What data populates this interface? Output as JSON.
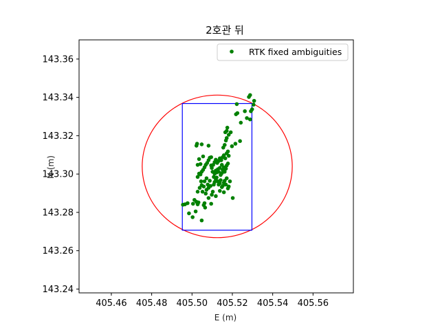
{
  "chart_data": {
    "type": "scatter",
    "title": "2호관 뒤",
    "xlabel": "E (m)",
    "ylabel": "N (m)",
    "xlim": [
      405.444,
      405.58
    ],
    "ylim": [
      143.238,
      143.37
    ],
    "xticks": [
      "405.46",
      "405.48",
      "405.50",
      "405.52",
      "405.54",
      "405.56"
    ],
    "yticks": [
      "143.24",
      "143.26",
      "143.28",
      "143.30",
      "143.32",
      "143.34",
      "143.36"
    ],
    "grid": false,
    "legend_position": "top-right",
    "series": [
      {
        "name": "RTK fixed ambiguities",
        "color": "#008000",
        "marker": "circle",
        "points": [
          [
            405.4955,
            143.284
          ],
          [
            405.4965,
            143.2842
          ],
          [
            405.4978,
            143.2848
          ],
          [
            405.4985,
            143.2795
          ],
          [
            405.5003,
            143.2775
          ],
          [
            405.5005,
            143.2845
          ],
          [
            405.5012,
            143.2865
          ],
          [
            405.5018,
            143.2805
          ],
          [
            405.5022,
            143.2855
          ],
          [
            405.5028,
            143.2842
          ],
          [
            405.5032,
            143.2852
          ],
          [
            405.5048,
            143.2758
          ],
          [
            405.5058,
            143.2838
          ],
          [
            405.5062,
            143.2848
          ],
          [
            405.5028,
            143.2908
          ],
          [
            405.5052,
            143.2908
          ],
          [
            405.5068,
            143.2898
          ],
          [
            405.5072,
            143.2918
          ],
          [
            405.5038,
            143.2928
          ],
          [
            405.5048,
            143.2942
          ],
          [
            405.5058,
            143.2935
          ],
          [
            405.5062,
            143.2962
          ],
          [
            405.5078,
            143.2945
          ],
          [
            405.5082,
            143.2928
          ],
          [
            405.5088,
            143.2965
          ],
          [
            405.5092,
            143.2938
          ],
          [
            405.5098,
            143.2892
          ],
          [
            405.5103,
            143.2908
          ],
          [
            405.5108,
            143.2945
          ],
          [
            405.5112,
            143.2958
          ],
          [
            405.5118,
            143.2972
          ],
          [
            405.5122,
            143.2982
          ],
          [
            405.5128,
            143.2962
          ],
          [
            405.5132,
            143.2945
          ],
          [
            405.5138,
            143.2952
          ],
          [
            405.5142,
            143.2968
          ],
          [
            405.5148,
            143.2932
          ],
          [
            405.5152,
            143.2938
          ],
          [
            405.5158,
            143.2955
          ],
          [
            405.5162,
            143.2965
          ],
          [
            405.5168,
            143.2945
          ],
          [
            405.5172,
            143.2978
          ],
          [
            405.5178,
            143.2925
          ],
          [
            405.5182,
            143.2935
          ],
          [
            405.5188,
            143.2962
          ],
          [
            405.5108,
            143.2985
          ],
          [
            405.5112,
            143.3002
          ],
          [
            405.5118,
            143.3018
          ],
          [
            405.5122,
            143.3008
          ],
          [
            405.5128,
            143.3025
          ],
          [
            405.5132,
            143.3012
          ],
          [
            405.5138,
            143.3032
          ],
          [
            405.5142,
            143.2995
          ],
          [
            405.5148,
            143.3005
          ],
          [
            405.5152,
            143.3022
          ],
          [
            405.5158,
            143.3035
          ],
          [
            405.5162,
            143.3012
          ],
          [
            405.5168,
            143.3028
          ],
          [
            405.5172,
            143.3045
          ],
          [
            405.5178,
            143.3055
          ],
          [
            405.5102,
            143.3012
          ],
          [
            405.5098,
            143.3032
          ],
          [
            405.5105,
            143.3048
          ],
          [
            405.5112,
            143.3062
          ],
          [
            405.5118,
            143.3075
          ],
          [
            405.5125,
            143.3058
          ],
          [
            405.5132,
            143.3068
          ],
          [
            405.5138,
            143.3082
          ],
          [
            405.5145,
            143.3072
          ],
          [
            405.5152,
            143.3088
          ],
          [
            405.5158,
            143.3098
          ],
          [
            405.5165,
            143.3082
          ],
          [
            405.5172,
            143.3108
          ],
          [
            405.5178,
            143.3118
          ],
          [
            405.5182,
            143.3095
          ],
          [
            405.5028,
            143.2985
          ],
          [
            405.5035,
            143.3002
          ],
          [
            405.5042,
            143.2998
          ],
          [
            405.5048,
            143.3012
          ],
          [
            405.5055,
            143.3022
          ],
          [
            405.5062,
            143.3035
          ],
          [
            405.5068,
            143.3048
          ],
          [
            405.5075,
            143.3058
          ],
          [
            405.5082,
            143.3072
          ],
          [
            405.5088,
            143.3085
          ],
          [
            405.5028,
            143.3048
          ],
          [
            405.5042,
            143.3052
          ],
          [
            405.5035,
            143.3078
          ],
          [
            405.5055,
            143.3092
          ],
          [
            405.5022,
            143.3148
          ],
          [
            405.5025,
            143.3158
          ],
          [
            405.5048,
            143.3155
          ],
          [
            405.5082,
            143.3148
          ],
          [
            405.5095,
            143.3088
          ],
          [
            405.5155,
            143.3138
          ],
          [
            405.5162,
            143.3152
          ],
          [
            405.5168,
            143.3175
          ],
          [
            405.5172,
            143.3188
          ],
          [
            405.5165,
            143.3218
          ],
          [
            405.5172,
            143.3225
          ],
          [
            405.5175,
            143.3242
          ],
          [
            405.5182,
            143.3205
          ],
          [
            405.5198,
            143.3145
          ],
          [
            405.5192,
            143.3218
          ],
          [
            405.5215,
            143.3158
          ],
          [
            405.5238,
            143.3172
          ],
          [
            405.5218,
            143.3312
          ],
          [
            405.5225,
            143.3318
          ],
          [
            405.5242,
            143.3268
          ],
          [
            405.5222,
            143.3365
          ],
          [
            405.5262,
            143.3328
          ],
          [
            405.5272,
            143.3292
          ],
          [
            405.5288,
            143.3285
          ],
          [
            405.5292,
            143.3328
          ],
          [
            405.5298,
            143.3338
          ],
          [
            405.5305,
            143.3362
          ],
          [
            405.5308,
            143.3382
          ],
          [
            405.5282,
            143.3402
          ],
          [
            405.5288,
            143.3412
          ],
          [
            405.5118,
            143.2885
          ],
          [
            405.5138,
            143.2912
          ],
          [
            405.5158,
            143.2905
          ],
          [
            405.5202,
            143.2875
          ],
          [
            405.5082,
            143.2875
          ],
          [
            405.5065,
            143.2825
          ],
          [
            405.5095,
            143.2845
          ],
          [
            405.5045,
            143.2962
          ],
          [
            405.5072,
            143.2978
          ],
          [
            405.5095,
            143.3045
          ],
          [
            405.5148,
            143.3048
          ]
        ]
      }
    ],
    "overlays": [
      {
        "shape": "circle",
        "color": "#ff0000",
        "center": [
          405.5125,
          143.304
        ],
        "radius": 0.0372
      },
      {
        "shape": "rectangle",
        "color": "#0000ff",
        "x": [
          405.4952,
          405.5297
        ],
        "y": [
          143.2707,
          143.3368
        ]
      }
    ]
  }
}
